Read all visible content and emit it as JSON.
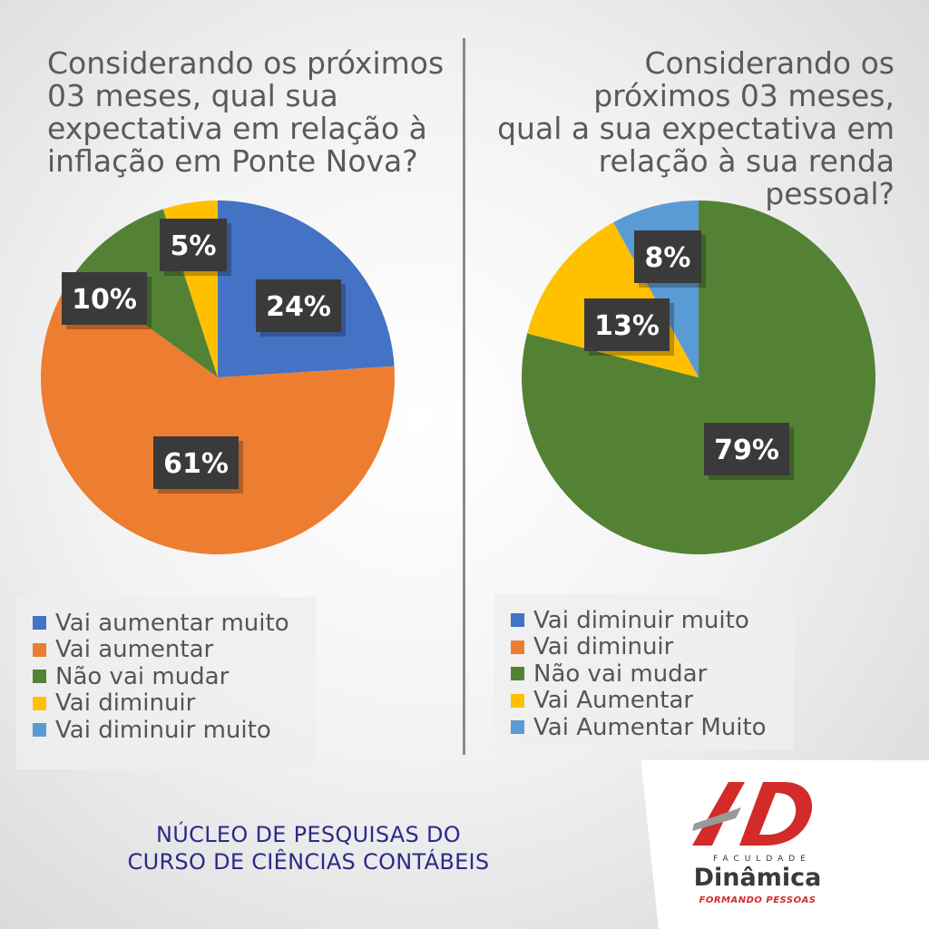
{
  "chart_data": [
    {
      "type": "pie",
      "title": "Considerando os próximos\n03 meses, qual sua\nexpectativa em relação à\ninflação em Ponte Nova?",
      "categories": [
        "Vai aumentar muito",
        "Vai aumentar",
        "Não vai mudar",
        "Vai diminuir",
        "Vai diminuir muito"
      ],
      "values": [
        24,
        61,
        10,
        5,
        0
      ],
      "data_labels": [
        "24%",
        "61%",
        "10%",
        "5%",
        ""
      ],
      "colors": [
        "#4472C4",
        "#ED7D31",
        "#548235",
        "#FFC000",
        "#5B9BD5"
      ],
      "legend": "bottom-left"
    },
    {
      "type": "pie",
      "title": "Considerando os\npróximos 03 meses,\nqual a sua expectativa em\nrelação à sua renda pessoal?",
      "categories": [
        "Vai diminuir muito",
        "Vai diminuir",
        "Não vai mudar",
        "Vai Aumentar",
        "Vai Aumentar Muito"
      ],
      "values": [
        0,
        0,
        79,
        13,
        8
      ],
      "data_labels": [
        "",
        "",
        "79%",
        "13%",
        "8%"
      ],
      "colors": [
        "#4472C4",
        "#ED7D31",
        "#548235",
        "#FFC000",
        "#5B9BD5"
      ],
      "legend": "bottom-right"
    }
  ],
  "footer": {
    "line1": "NÚCLEO DE PESQUISAS DO",
    "line2": "CURSO DE CIÊNCIAS CONTÁBEIS"
  },
  "logo": {
    "small_text": "FACULDADE",
    "name": "Dinâmica",
    "tagline": "FORMANDO PESSOAS"
  },
  "colors": {
    "label_box": "#3a3a3a",
    "footer_text": "#2b2a8a",
    "logo_red": "#d32a2a"
  }
}
